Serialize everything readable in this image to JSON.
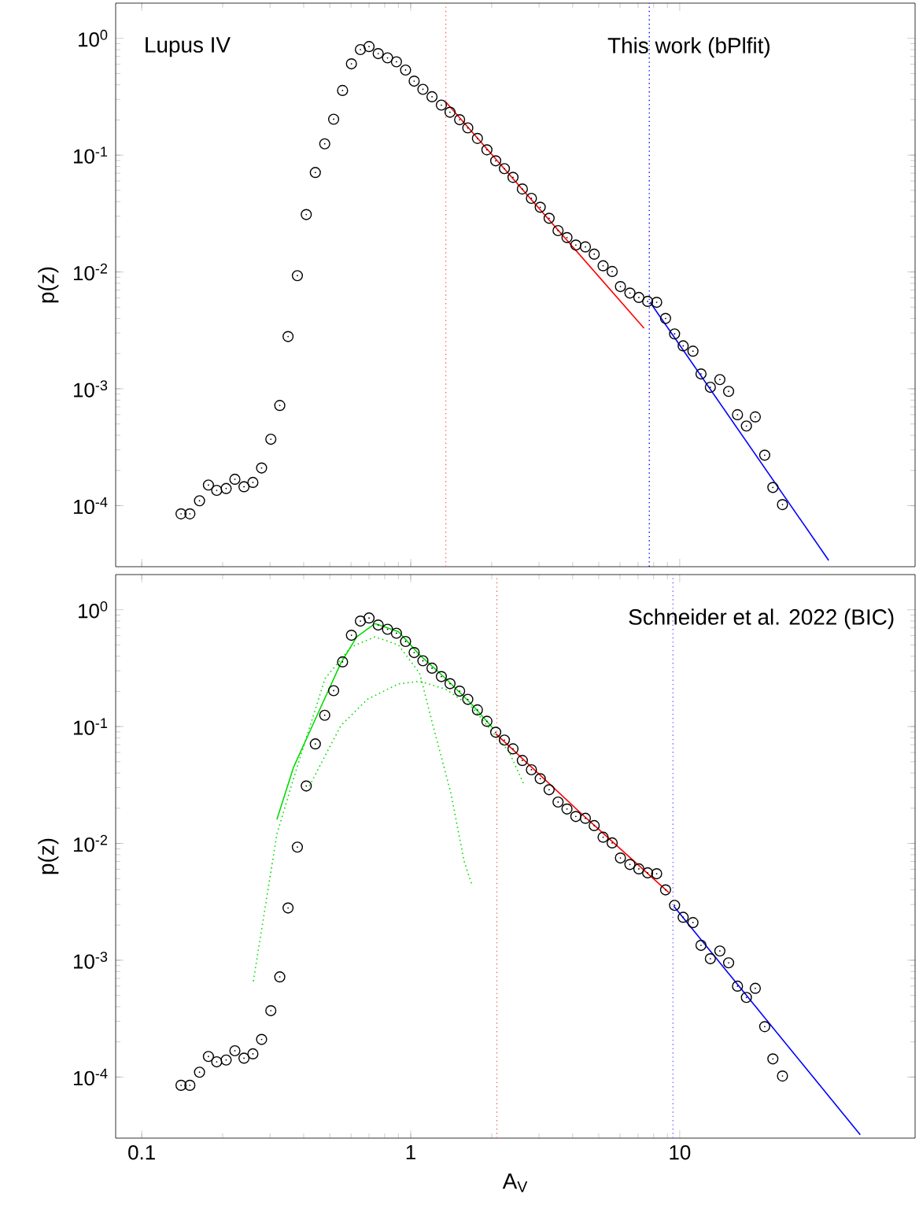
{
  "chart_data": [
    {
      "type": "scatter",
      "ylabel": "p(z)",
      "log": "xy",
      "tick_labels": "y",
      "annotations": [
        "Lupus IV",
        "This work (bPlfit)"
      ],
      "xlim": [
        0.08,
        75
      ],
      "ylim": [
        3e-05,
        2
      ],
      "xticks": [
        0.1,
        1,
        10
      ],
      "yticks": [
        {
          "value": 0.0001,
          "label": "10$^{-4}$"
        },
        {
          "value": 0.001,
          "label": "10$^{-3}$"
        },
        {
          "value": 0.01,
          "label": "10$^{-2}$"
        },
        {
          "value": 0.1,
          "label": "10$^{-1}$"
        },
        {
          "value": 1,
          "label": "10$^{0}$"
        }
      ],
      "ref_lines": [
        {
          "axis": "x",
          "value": 1.35,
          "color": "#ff6666",
          "line_style": "dotted"
        },
        {
          "axis": "x",
          "value": 7.71,
          "color": "#0000ff",
          "line_style": "dotted"
        }
      ],
      "series": [
        {
          "marker": "circle",
          "color": "#000000",
          "x": [
            0.14,
            0.151,
            0.164,
            0.177,
            0.19,
            0.206,
            0.222,
            0.24,
            0.259,
            0.279,
            0.302,
            0.326,
            0.35,
            0.379,
            0.409,
            0.442,
            0.479,
            0.517,
            0.558,
            0.602,
            0.65,
            0.7,
            0.757,
            0.82,
            0.885,
            0.957,
            1.03,
            1.11,
            1.2,
            1.3,
            1.4,
            1.52,
            1.63,
            1.77,
            1.92,
            2.07,
            2.23,
            2.4,
            2.6,
            2.81,
            3.03,
            3.27,
            3.53,
            3.81,
            4.11,
            4.46,
            4.81,
            5.19,
            5.61,
            6.02,
            6.53,
            7.05,
            7.6,
            8.21,
            8.86,
            9.57,
            10.3,
            11.2,
            12.0,
            13.0,
            14.1,
            15.2,
            16.4,
            17.7,
            19.1,
            20.7,
            22.2,
            24.1
          ],
          "values": [
            8.5e-05,
            8.5e-05,
            0.00011,
            0.00015,
            0.000135,
            0.00014,
            0.000168,
            0.000145,
            0.000158,
            0.00021,
            0.00037,
            0.00072,
            0.0028,
            0.0093,
            0.031,
            0.071,
            0.125,
            0.203,
            0.358,
            0.605,
            0.8,
            0.85,
            0.74,
            0.68,
            0.63,
            0.535,
            0.43,
            0.366,
            0.316,
            0.268,
            0.233,
            0.201,
            0.171,
            0.139,
            0.111,
            0.0894,
            0.0766,
            0.0645,
            0.0513,
            0.0427,
            0.0358,
            0.0288,
            0.0226,
            0.0197,
            0.017,
            0.0164,
            0.0142,
            0.0113,
            0.0101,
            0.0075,
            0.0066,
            0.00605,
            0.0056,
            0.0055,
            0.004,
            0.00295,
            0.00233,
            0.0021,
            0.00134,
            0.00103,
            0.0012,
            0.00095,
            0.0006,
            0.00048,
            0.000575,
            0.00027,
            0.000143,
            0.000102
          ]
        },
        {
          "type": "line",
          "line_style": "solid",
          "color": "#ff0000",
          "x": [
            1.35,
            7.37
          ],
          "values": [
            0.285,
            0.0033
          ]
        },
        {
          "type": "line",
          "line_style": "solid",
          "color": "#0000ff",
          "x": [
            7.76,
            35.8
          ],
          "values": [
            0.0055,
            3.4e-05
          ]
        }
      ]
    },
    {
      "type": "scatter",
      "ylabel": "p(z)",
      "xlabel": "A$_{V}$",
      "log": "xy",
      "annotations": [
        "Schneider et al. 2022 (BIC)"
      ],
      "xlim": [
        0.08,
        75
      ],
      "ylim": [
        3e-05,
        2
      ],
      "xticks": [
        0.1,
        1,
        10
      ],
      "yticks": [
        {
          "value": 0.0001,
          "label": "10$^{-4}$"
        },
        {
          "value": 0.001,
          "label": "10$^{-3}$"
        },
        {
          "value": 0.01,
          "label": "10$^{-2}$"
        },
        {
          "value": 0.1,
          "label": "10$^{-1}$"
        },
        {
          "value": 1,
          "label": "10$^{0}$"
        }
      ],
      "ref_lines": [
        {
          "axis": "x",
          "value": 2.09,
          "color": "#e07070",
          "line_style": "dotted"
        },
        {
          "axis": "x",
          "value": 9.44,
          "color": "#7070ff",
          "line_style": "dotted"
        }
      ],
      "series": [
        {
          "marker": "circle",
          "color": "#000000",
          "x": [
            0.14,
            0.151,
            0.164,
            0.177,
            0.19,
            0.206,
            0.222,
            0.24,
            0.259,
            0.279,
            0.302,
            0.326,
            0.35,
            0.379,
            0.409,
            0.442,
            0.479,
            0.517,
            0.558,
            0.602,
            0.65,
            0.7,
            0.757,
            0.82,
            0.885,
            0.957,
            1.03,
            1.11,
            1.2,
            1.3,
            1.4,
            1.52,
            1.63,
            1.77,
            1.92,
            2.07,
            2.23,
            2.4,
            2.6,
            2.81,
            3.03,
            3.27,
            3.53,
            3.81,
            4.11,
            4.46,
            4.81,
            5.19,
            5.61,
            6.02,
            6.53,
            7.05,
            7.6,
            8.21,
            8.86,
            9.57,
            10.3,
            11.2,
            12.0,
            13.0,
            14.1,
            15.2,
            16.4,
            17.7,
            19.1,
            20.7,
            22.2,
            24.1
          ],
          "values": [
            8.5e-05,
            8.5e-05,
            0.00011,
            0.00015,
            0.000135,
            0.00014,
            0.000168,
            0.000145,
            0.000158,
            0.00021,
            0.00037,
            0.00072,
            0.0028,
            0.0093,
            0.031,
            0.071,
            0.125,
            0.203,
            0.358,
            0.605,
            0.8,
            0.85,
            0.74,
            0.68,
            0.63,
            0.535,
            0.43,
            0.366,
            0.316,
            0.268,
            0.233,
            0.201,
            0.171,
            0.139,
            0.111,
            0.0894,
            0.0766,
            0.0645,
            0.0513,
            0.0427,
            0.0358,
            0.0288,
            0.0226,
            0.0197,
            0.017,
            0.0164,
            0.0142,
            0.0113,
            0.0101,
            0.0075,
            0.0066,
            0.00605,
            0.0056,
            0.0055,
            0.004,
            0.00295,
            0.00233,
            0.0021,
            0.00134,
            0.00103,
            0.0012,
            0.00095,
            0.0006,
            0.00048,
            0.000575,
            0.00027,
            0.000143,
            0.000102
          ]
        },
        {
          "type": "line",
          "line_style": "solid",
          "color": "#00dd00",
          "x": [
            0.318,
            0.367,
            0.44,
            0.55,
            0.63,
            0.736,
            0.9,
            1.08,
            1.35,
            1.69,
            2.02
          ],
          "values": [
            0.016,
            0.045,
            0.113,
            0.35,
            0.586,
            0.76,
            0.65,
            0.41,
            0.257,
            0.154,
            0.097
          ]
        },
        {
          "type": "line",
          "line_style": "dotted",
          "color": "#00dd00",
          "x": [
            0.26,
            0.318,
            0.367,
            0.48,
            0.6,
            0.736,
            0.9,
            1.08,
            1.21,
            1.41,
            1.58,
            1.69
          ],
          "values": [
            0.00066,
            0.012,
            0.036,
            0.257,
            0.48,
            0.586,
            0.5,
            0.285,
            0.102,
            0.027,
            0.007,
            0.0044
          ]
        },
        {
          "type": "line",
          "line_style": "dotted",
          "color": "#00dd00",
          "x": [
            0.42,
            0.55,
            0.69,
            0.9,
            1.08,
            1.35,
            1.69,
            2.32,
            2.65
          ],
          "values": [
            0.031,
            0.102,
            0.171,
            0.232,
            0.244,
            0.209,
            0.146,
            0.061,
            0.031
          ]
        },
        {
          "type": "line",
          "line_style": "solid",
          "color": "#ff0000",
          "x": [
            2.07,
            4.34,
            9.1
          ],
          "values": [
            0.087,
            0.0177,
            0.0038
          ]
        },
        {
          "type": "line",
          "line_style": "solid",
          "color": "#0000ff",
          "x": [
            9.5,
            46.9
          ],
          "values": [
            0.0029,
            3.2e-05
          ]
        }
      ]
    }
  ]
}
